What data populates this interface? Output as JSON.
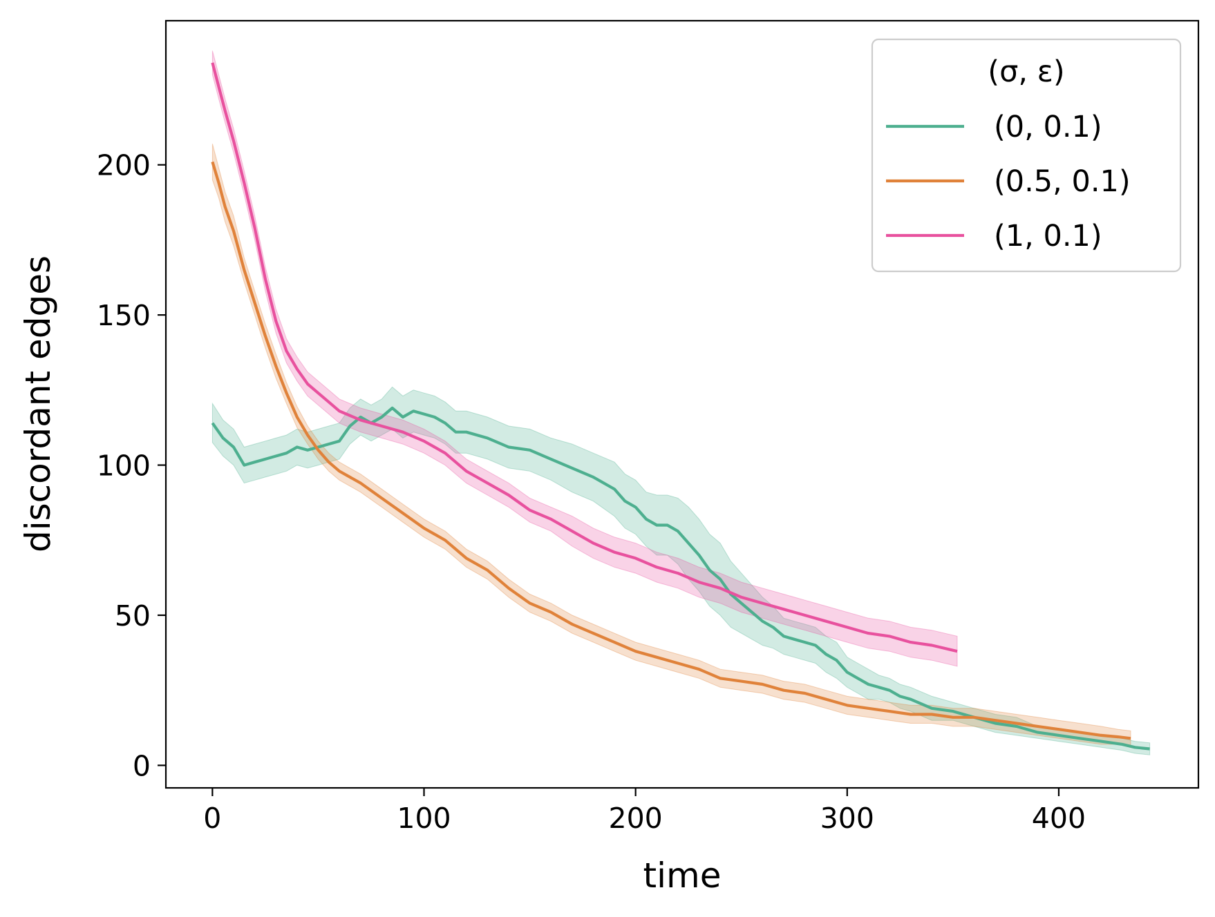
{
  "chart_data": {
    "type": "line",
    "xlabel": "time",
    "ylabel": "discordant edges",
    "xlim": [
      -22,
      466
    ],
    "ylim": [
      -7.5,
      248
    ],
    "xticks": [
      0,
      100,
      200,
      300,
      400
    ],
    "yticks": [
      0,
      50,
      100,
      150,
      200
    ],
    "grid": false,
    "legend": {
      "title": "(σ, ε)",
      "placement": "top-right"
    },
    "series": [
      {
        "name": "(0, 0.1)",
        "color": "#4daf8f",
        "x": [
          0,
          5,
          10,
          15,
          20,
          25,
          30,
          35,
          40,
          45,
          50,
          55,
          60,
          65,
          70,
          75,
          80,
          85,
          90,
          95,
          100,
          105,
          110,
          115,
          120,
          130,
          140,
          150,
          160,
          170,
          180,
          190,
          195,
          200,
          205,
          210,
          215,
          220,
          225,
          230,
          235,
          240,
          245,
          250,
          255,
          260,
          265,
          270,
          275,
          280,
          285,
          290,
          295,
          300,
          305,
          310,
          315,
          320,
          325,
          330,
          340,
          350,
          360,
          370,
          380,
          390,
          400,
          410,
          420,
          430,
          436,
          443
        ],
        "y": [
          114,
          109,
          106,
          100,
          101,
          102,
          103,
          104,
          106,
          105,
          106,
          107,
          108,
          113,
          116,
          114,
          116,
          119,
          116,
          118,
          117,
          116,
          114,
          111,
          111,
          109,
          106,
          105,
          102,
          99,
          96,
          92,
          88,
          86,
          82,
          80,
          80,
          78,
          74,
          70,
          65,
          62,
          57,
          54,
          51,
          48,
          46,
          43,
          42,
          41,
          40,
          37,
          35,
          31,
          29,
          27,
          26,
          25,
          23,
          22,
          19,
          18,
          16,
          14,
          13,
          11,
          10,
          9,
          8,
          7,
          6,
          5.5
        ],
        "band": [
          6.5,
          6,
          6,
          6,
          6,
          6,
          6,
          6,
          6,
          6,
          6,
          6,
          6,
          6,
          6,
          6,
          6,
          7,
          7,
          7,
          7,
          7,
          7,
          7,
          7,
          7,
          7,
          7,
          7,
          8,
          8,
          9,
          9,
          9,
          9,
          10,
          10,
          11,
          12,
          12,
          12,
          12,
          11,
          10,
          9,
          8,
          7,
          6,
          6,
          6,
          6,
          6,
          6,
          5,
          5,
          5,
          4,
          4,
          4,
          4,
          4,
          3,
          3,
          3,
          3,
          2,
          2,
          2,
          2,
          2,
          2,
          2
        ]
      },
      {
        "name": "(0.5, 0.1)",
        "color": "#e0823a",
        "x": [
          0,
          3,
          6,
          10,
          15,
          20,
          25,
          30,
          35,
          40,
          45,
          50,
          55,
          60,
          70,
          80,
          90,
          100,
          110,
          120,
          130,
          140,
          150,
          160,
          170,
          180,
          190,
          200,
          210,
          220,
          230,
          240,
          250,
          260,
          270,
          280,
          290,
          300,
          310,
          320,
          330,
          340,
          350,
          360,
          370,
          380,
          390,
          400,
          410,
          420,
          428,
          434
        ],
        "y": [
          201,
          194,
          186,
          178,
          165,
          154,
          143,
          133,
          124,
          116,
          110,
          105,
          101,
          98,
          94,
          89,
          84,
          79,
          75,
          69,
          65,
          59,
          54,
          51,
          47,
          44,
          41,
          38,
          36,
          34,
          32,
          29,
          28,
          27,
          25,
          24,
          22,
          20,
          19,
          18,
          17,
          17,
          16,
          16,
          15,
          14,
          13,
          12,
          11,
          10,
          9.5,
          9
        ],
        "band": [
          6,
          5,
          5,
          5,
          4,
          4,
          4,
          4,
          3.5,
          3.5,
          3,
          3,
          3,
          3,
          3,
          3,
          3,
          3,
          3,
          3,
          3,
          3,
          3,
          3,
          3,
          3,
          3,
          3,
          3,
          3,
          3,
          3,
          3,
          3,
          3,
          3,
          3,
          3,
          3,
          3,
          3,
          3,
          3,
          3,
          3,
          3,
          3,
          3,
          3,
          3,
          2.5,
          2.5
        ]
      },
      {
        "name": "(1, 0.1)",
        "color": "#e8519e",
        "x": [
          0,
          3,
          6,
          10,
          15,
          20,
          25,
          30,
          35,
          40,
          45,
          50,
          55,
          60,
          70,
          80,
          90,
          100,
          110,
          120,
          130,
          140,
          150,
          160,
          170,
          180,
          190,
          200,
          210,
          220,
          230,
          240,
          250,
          260,
          270,
          280,
          290,
          300,
          310,
          320,
          330,
          340,
          352
        ],
        "y": [
          234,
          226,
          218,
          208,
          194,
          179,
          162,
          148,
          138,
          132,
          127,
          124,
          121,
          118,
          115,
          113,
          111,
          108,
          104,
          98,
          94,
          90,
          85,
          82,
          78,
          74,
          71,
          69,
          66,
          64,
          61,
          59,
          56,
          54,
          52,
          50,
          48,
          46,
          44,
          43,
          41,
          40,
          38
        ],
        "band": [
          4,
          4,
          4,
          4,
          4,
          4,
          4,
          4,
          4,
          4,
          4,
          4,
          4,
          4,
          4,
          4,
          4,
          4,
          4,
          4,
          4,
          4,
          4,
          4,
          5,
          5,
          5,
          5,
          5,
          5,
          5,
          5,
          5,
          5,
          5,
          5,
          5,
          5,
          5,
          5,
          5,
          5,
          5
        ]
      }
    ]
  }
}
